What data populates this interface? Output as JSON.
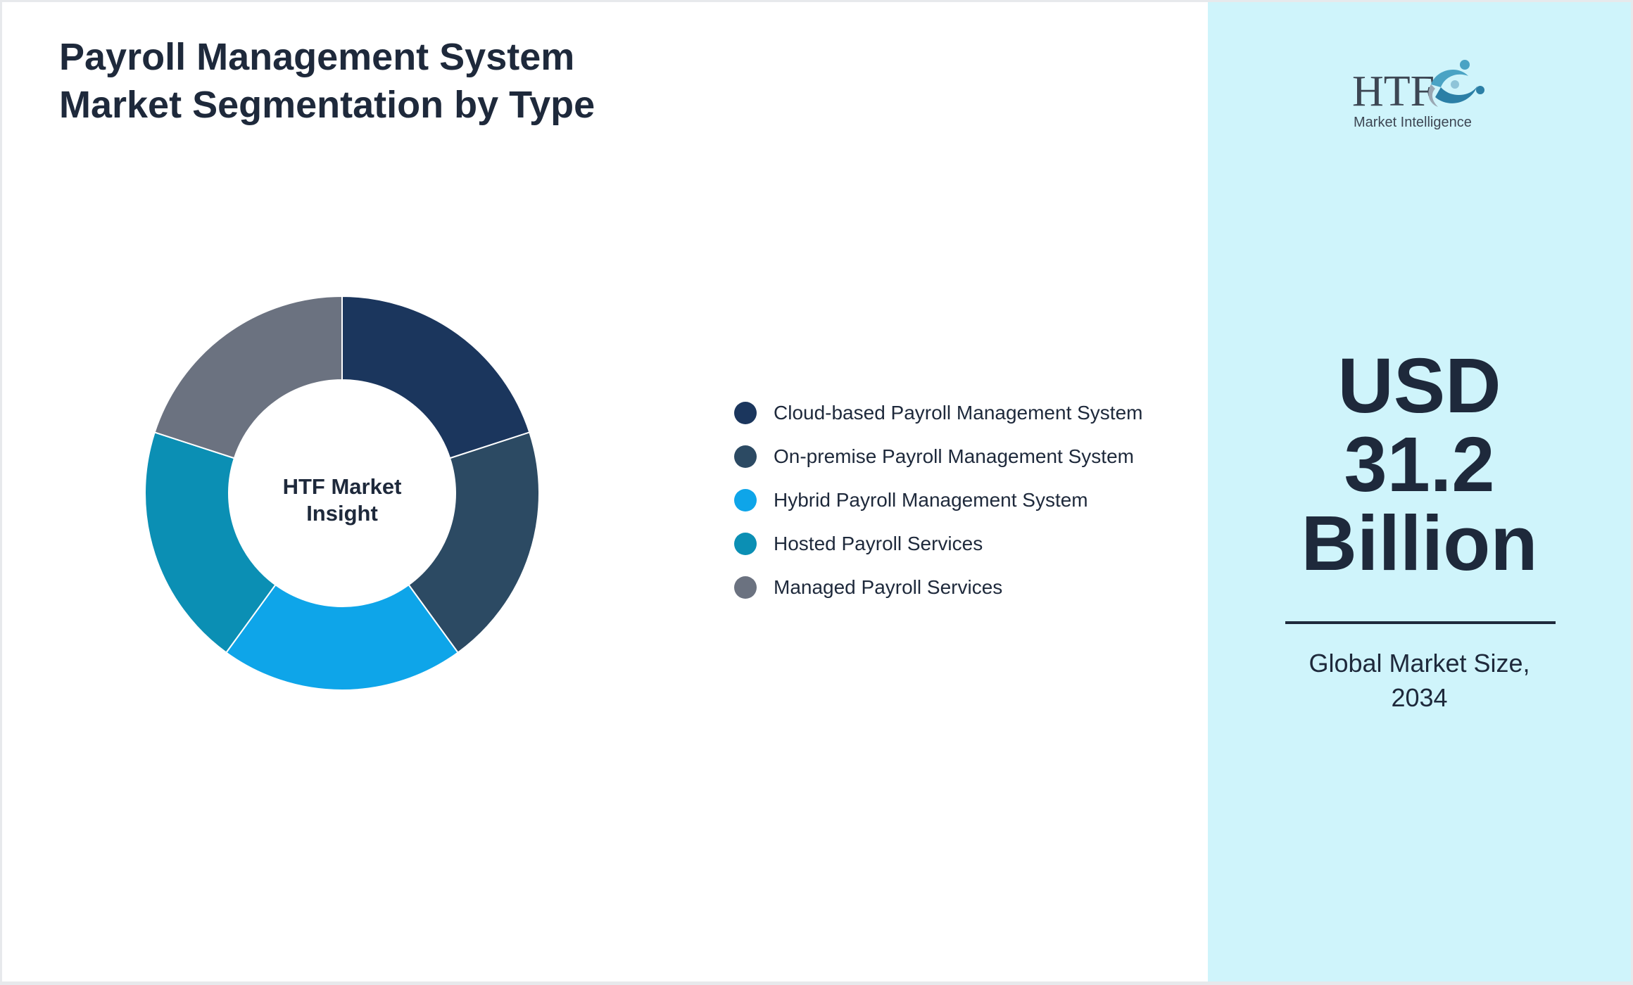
{
  "title": {
    "line1": "Payroll Management System",
    "line2": "Market Segmentation by Type"
  },
  "chart_data": {
    "type": "pie",
    "donut": true,
    "center_label": [
      "HTF Market",
      "Insight"
    ],
    "categories": [
      "Cloud-based Payroll Management System",
      "On-premise Payroll Management System",
      "Hybrid Payroll Management System",
      "Hosted Payroll Services",
      "Managed Payroll Services"
    ],
    "values": [
      20,
      20,
      20,
      20,
      20
    ],
    "colors": [
      "#1b365d",
      "#2c4a63",
      "#0ea5e9",
      "#0b8fb4",
      "#6b7280"
    ],
    "legend_position": "right"
  },
  "logo": {
    "text": "HTF",
    "subtitle": "Market Intelligence",
    "icon": "htf-logo-icon"
  },
  "market": {
    "value_lines": [
      "USD",
      "31.2",
      "Billion"
    ],
    "caption_lines": [
      "Global Market Size,",
      "2034"
    ]
  }
}
